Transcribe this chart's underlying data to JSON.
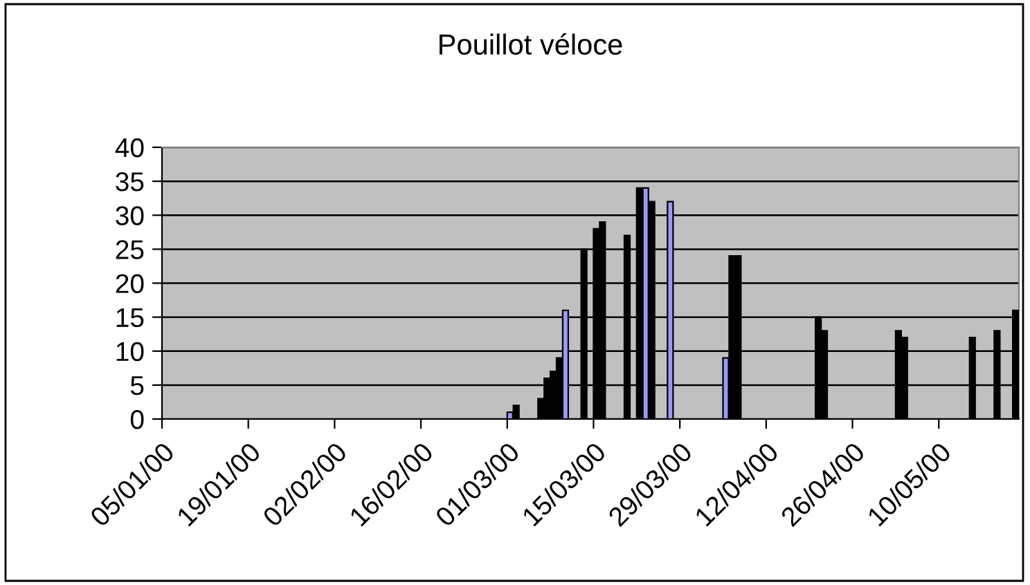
{
  "chart_data": {
    "type": "bar",
    "title": "Pouillot véloce",
    "x": [
      "2000-03-01",
      "2000-03-02",
      "2000-03-06",
      "2000-03-07",
      "2000-03-08",
      "2000-03-09",
      "2000-03-10",
      "2000-03-13",
      "2000-03-15",
      "2000-03-16",
      "2000-03-20",
      "2000-03-22",
      "2000-03-23",
      "2000-03-24",
      "2000-03-27",
      "2000-04-05",
      "2000-04-06",
      "2000-04-07",
      "2000-04-20",
      "2000-04-21",
      "2000-05-03",
      "2000-05-04",
      "2000-05-15",
      "2000-05-19",
      "2000-05-22"
    ],
    "values": [
      1,
      2,
      3,
      6,
      7,
      9,
      16,
      25,
      28,
      29,
      27,
      34,
      34,
      32,
      32,
      9,
      24,
      24,
      15,
      13,
      13,
      12,
      12,
      13,
      16
    ],
    "colors": [
      "#9999ff",
      "#000000",
      "#000000",
      "#000000",
      "#000000",
      "#000000",
      "#9999ff",
      "#000000",
      "#000000",
      "#000000",
      "#000000",
      "#000000",
      "#9999ff",
      "#000000",
      "#9999ff",
      "#9999ff",
      "#000000",
      "#000000",
      "#000000",
      "#000000",
      "#000000",
      "#000000",
      "#000000",
      "#000000",
      "#000000"
    ],
    "xlim": [
      "2000-01-05",
      "2000-05-23"
    ],
    "xticks": [
      {
        "value": "2000-01-05",
        "label": "05/01/00"
      },
      {
        "value": "2000-01-19",
        "label": "19/01/00"
      },
      {
        "value": "2000-02-02",
        "label": "02/02/00"
      },
      {
        "value": "2000-02-16",
        "label": "16/02/00"
      },
      {
        "value": "2000-03-01",
        "label": "01/03/00"
      },
      {
        "value": "2000-03-15",
        "label": "15/03/00"
      },
      {
        "value": "2000-03-29",
        "label": "29/03/00"
      },
      {
        "value": "2000-04-12",
        "label": "12/04/00"
      },
      {
        "value": "2000-04-26",
        "label": "26/04/00"
      },
      {
        "value": "2000-05-10",
        "label": "10/05/00"
      }
    ],
    "ylim": [
      0,
      40
    ],
    "yticks": [
      0,
      5,
      10,
      15,
      20,
      25,
      30,
      35,
      40
    ],
    "grid": "y"
  }
}
